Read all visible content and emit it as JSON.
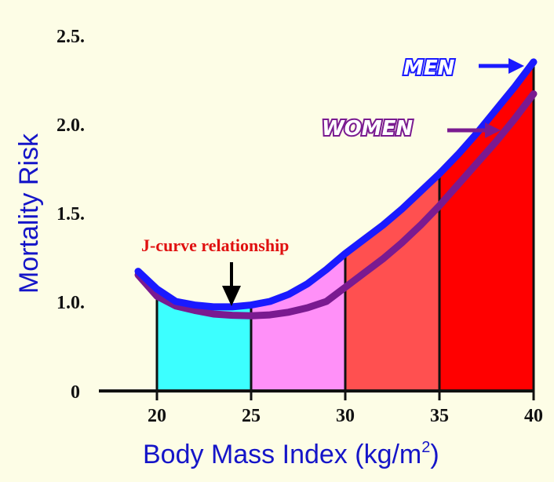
{
  "chart_data": {
    "type": "line",
    "title": "",
    "xlabel": "Body Mass Index (kg/m",
    "xlabel_superscript": "2",
    "xlabel_close": ")",
    "ylabel": "Mortality Risk",
    "xlim": [
      17,
      40
    ],
    "ylim": [
      0,
      2.5
    ],
    "y_axis_break": "compressed between 0 and 1.0",
    "x_ticks": [
      {
        "value": 20,
        "label": "20"
      },
      {
        "value": 25,
        "label": "25"
      },
      {
        "value": 30,
        "label": "30"
      },
      {
        "value": 35,
        "label": "35"
      },
      {
        "value": 40,
        "label": "40"
      }
    ],
    "y_ticks": [
      {
        "value": 0,
        "label": "0"
      },
      {
        "value": 1.0,
        "label": "1.0."
      },
      {
        "value": 1.5,
        "label": "1.5."
      },
      {
        "value": 2.0,
        "label": "2.0."
      },
      {
        "value": 2.5,
        "label": "2.5."
      }
    ],
    "x": [
      19,
      20,
      21,
      22,
      23,
      24,
      25,
      26,
      27,
      28,
      29,
      30,
      31,
      32,
      33,
      34,
      35,
      36,
      37,
      38,
      39,
      40
    ],
    "series": [
      {
        "name": "MEN",
        "color": "#1a1aff",
        "values": [
          1.17,
          1.07,
          1.0,
          0.96,
          0.94,
          0.94,
          0.96,
          1.0,
          1.04,
          1.1,
          1.18,
          1.27,
          1.35,
          1.43,
          1.52,
          1.62,
          1.72,
          1.83,
          1.95,
          2.08,
          2.21,
          2.35
        ]
      },
      {
        "name": "WOMEN",
        "color": "#7a1a90",
        "values": [
          1.15,
          1.03,
          0.95,
          0.9,
          0.86,
          0.845,
          0.84,
          0.85,
          0.88,
          0.93,
          1.0,
          1.08,
          1.16,
          1.24,
          1.33,
          1.43,
          1.54,
          1.66,
          1.78,
          1.9,
          2.03,
          2.17
        ]
      }
    ],
    "bands": [
      {
        "from": 20,
        "to": 25,
        "color": "#3cffff"
      },
      {
        "from": 25,
        "to": 30,
        "color": "#ff90f8"
      },
      {
        "from": 30,
        "to": 35,
        "color": "#ff5050"
      },
      {
        "from": 35,
        "to": 40,
        "color": "#ff0000"
      }
    ],
    "annotation": {
      "text": "J-curve relationship",
      "x": 24,
      "color": "#e01010"
    }
  }
}
